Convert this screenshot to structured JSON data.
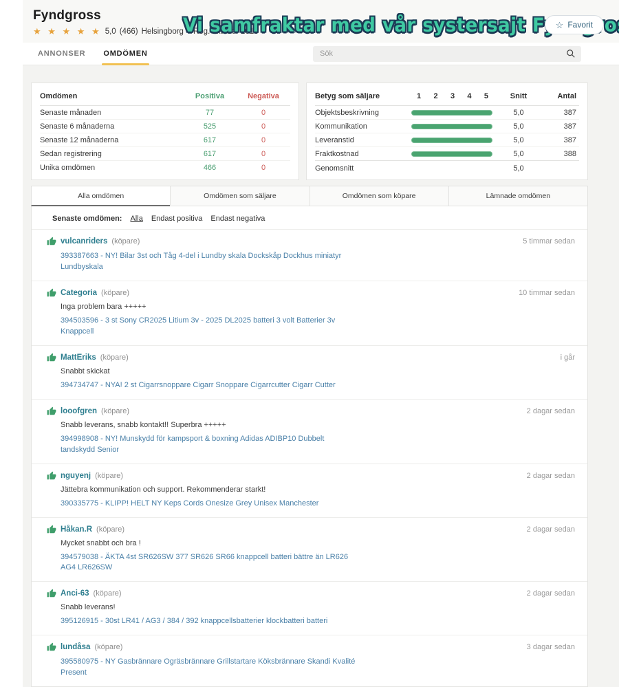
{
  "profile": {
    "name": "Fyndgross",
    "stars": "★ ★ ★ ★ ★",
    "rating": "5,0",
    "review_count": "(466)",
    "location": "Helsingborg",
    "bullet": "•",
    "registered": "Reg. oktober 2018",
    "banner": "Vi samfraktar med vår systersajt Fyndgross!",
    "favorite_label": "Favorit",
    "favorite_star": "☆"
  },
  "nav": {
    "tabs": [
      {
        "label": "ANNONSER",
        "active": false
      },
      {
        "label": "OMDÖMEN",
        "active": true
      }
    ],
    "search_placeholder": "Sök"
  },
  "summary_table": {
    "title": "Omdömen",
    "col_positive": "Positiva",
    "col_negative": "Negativa",
    "rows": [
      {
        "label": "Senaste månaden",
        "positive": "77",
        "negative": "0"
      },
      {
        "label": "Senaste 6 månaderna",
        "positive": "525",
        "negative": "0"
      },
      {
        "label": "Senaste 12 månaderna",
        "positive": "617",
        "negative": "0"
      },
      {
        "label": "Sedan registrering",
        "positive": "617",
        "negative": "0"
      },
      {
        "label": "Unika omdömen",
        "positive": "466",
        "negative": "0"
      }
    ]
  },
  "rating_table": {
    "title": "Betyg som säljare",
    "scale": [
      "1",
      "2",
      "3",
      "4",
      "5"
    ],
    "col_avg": "Snitt",
    "col_count": "Antal",
    "rows": [
      {
        "label": "Objektsbeskrivning",
        "bar_pct": 100,
        "avg": "5,0",
        "count": "387"
      },
      {
        "label": "Kommunikation",
        "bar_pct": 100,
        "avg": "5,0",
        "count": "387"
      },
      {
        "label": "Leveranstid",
        "bar_pct": 100,
        "avg": "5,0",
        "count": "387"
      },
      {
        "label": "Fraktkostnad",
        "bar_pct": 100,
        "avg": "5,0",
        "count": "388"
      }
    ],
    "footer": {
      "label": "Genomsnitt",
      "avg": "5,0"
    }
  },
  "review_tabs": [
    {
      "label": "Alla omdömen",
      "active": true
    },
    {
      "label": "Omdömen som säljare",
      "active": false
    },
    {
      "label": "Omdömen som köpare",
      "active": false
    },
    {
      "label": "Lämnade omdömen",
      "active": false
    }
  ],
  "filter": {
    "label": "Senaste omdömen:",
    "options": [
      {
        "label": "Alla",
        "active": true
      },
      {
        "label": "Endast positiva",
        "active": false
      },
      {
        "label": "Endast negativa",
        "active": false
      }
    ]
  },
  "reviews": [
    {
      "user": "vulcanriders",
      "role": "(köpare)",
      "time": "5 timmar sedan",
      "comment": "",
      "link": "393387663 - NY! Bilar 3st och Tåg 4-del i Lundby skala Dockskåp Dockhus miniatyr Lundbyskala"
    },
    {
      "user": "Categoria",
      "role": "(köpare)",
      "time": "10 timmar sedan",
      "comment": "Inga problem bara +++++",
      "link": "394503596 - 3 st Sony CR2025 Litium 3v - 2025 DL2025 batteri 3 volt Batterier 3v Knappcell"
    },
    {
      "user": "MattEriks",
      "role": "(köpare)",
      "time": "i går",
      "comment": "Snabbt skickat",
      "link": "394734747 - NYA! 2 st Cigarrsnoppare Cigarr Snoppare Cigarrcutter Cigarr Cutter"
    },
    {
      "user": "looofgren",
      "role": "(köpare)",
      "time": "2 dagar sedan",
      "comment": "Snabb leverans, snabb kontakt!! Superbra +++++",
      "link": "394998908 - NY! Munskydd för kampsport & boxning Adidas ADIBP10 Dubbelt tandskydd Senior"
    },
    {
      "user": "nguyenj",
      "role": "(köpare)",
      "time": "2 dagar sedan",
      "comment": "Jättebra kommunikation och support. Rekommenderar starkt!",
      "link": "390335775 - KLIPP! HELT NY Keps Cords Onesize Grey Unisex Manchester"
    },
    {
      "user": "Håkan.R",
      "role": "(köpare)",
      "time": "2 dagar sedan",
      "comment": "Mycket snabbt och bra !",
      "link": "394579038 - ÄKTA 4st SR626SW 377 SR626 SR66 knappcell batteri bättre än LR626 AG4 LR626SW"
    },
    {
      "user": "Anci-63",
      "role": "(köpare)",
      "time": "2 dagar sedan",
      "comment": "Snabb leverans!",
      "link": "395126915 - 30st LR41 / AG3 / 384 / 392 knappcellsbatterier klockbatteri batteri"
    },
    {
      "user": "lundåsa",
      "role": "(köpare)",
      "time": "3 dagar sedan",
      "comment": "",
      "link": "395580975 - NY Gasbrännare Ogräsbrännare Grillstartare Köksbrännare Skandi Kvalité Present"
    }
  ],
  "colors": {
    "accent_yellow": "#f1c152",
    "positive_green": "#4a9e71",
    "negative_red": "#cc5a55",
    "bar_green": "#4aa470",
    "banner_teal": "#3fc9a2",
    "link_blue": "#4a80a8",
    "username_teal": "#2e7e8f",
    "star_gold": "#e7a33e"
  }
}
